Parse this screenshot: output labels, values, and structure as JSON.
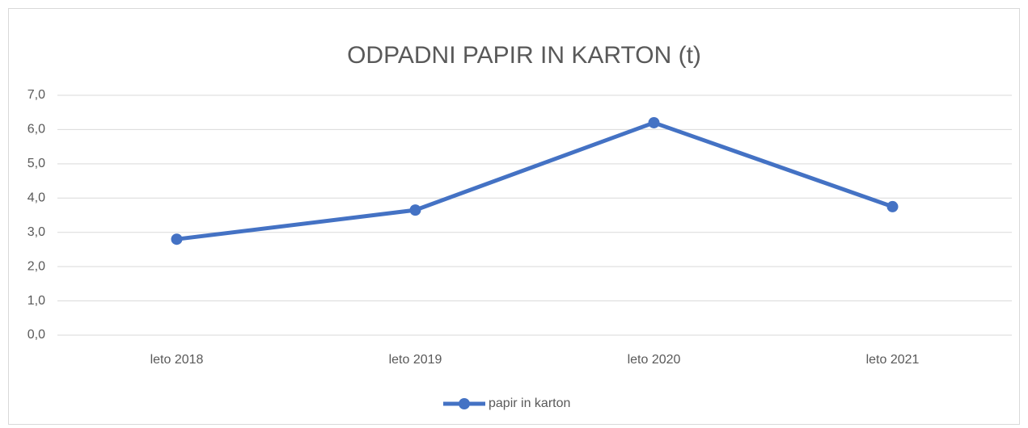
{
  "chart_data": {
    "type": "line",
    "title": "ODPADNI PAPIR IN KARTON (t)",
    "categories": [
      "leto 2018",
      "leto 2019",
      "leto 2020",
      "leto 2021"
    ],
    "series": [
      {
        "name": "papir in karton",
        "color": "#4472c4",
        "values": [
          2.8,
          3.65,
          6.2,
          3.75
        ]
      }
    ],
    "ylim": [
      0,
      7
    ],
    "yticks": [
      {
        "value": 0,
        "label": "0,0"
      },
      {
        "value": 1,
        "label": "1,0"
      },
      {
        "value": 2,
        "label": "2,0"
      },
      {
        "value": 3,
        "label": "3,0"
      },
      {
        "value": 4,
        "label": "4,0"
      },
      {
        "value": 5,
        "label": "5,0"
      },
      {
        "value": 6,
        "label": "6,0"
      },
      {
        "value": 7,
        "label": "7,0"
      }
    ],
    "grid": true,
    "legend": "bottom"
  }
}
